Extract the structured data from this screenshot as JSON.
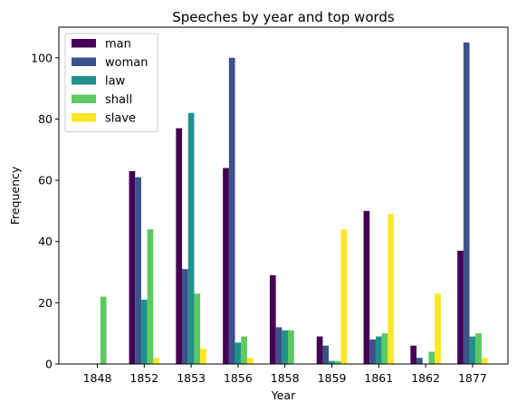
{
  "chart_data": {
    "type": "bar",
    "title": "Speeches by year and top words",
    "xlabel": "Year",
    "ylabel": "Frequency",
    "ylim": [
      0,
      110
    ],
    "yticks": [
      0,
      20,
      40,
      60,
      80,
      100
    ],
    "grid": false,
    "legend_position": "top-left",
    "categories": [
      "1848",
      "1852",
      "1853",
      "1856",
      "1858",
      "1859",
      "1861",
      "1862",
      "1877"
    ],
    "series": [
      {
        "name": "man",
        "color": "#440154",
        "values": [
          0,
          63,
          77,
          64,
          29,
          9,
          50,
          6,
          37
        ]
      },
      {
        "name": "woman",
        "color": "#3b528b",
        "values": [
          0,
          61,
          31,
          100,
          12,
          6,
          8,
          2,
          105
        ]
      },
      {
        "name": "law",
        "color": "#21918c",
        "values": [
          0,
          21,
          82,
          7,
          11,
          1,
          9,
          0,
          9
        ]
      },
      {
        "name": "shall",
        "color": "#5ec962",
        "values": [
          22,
          44,
          23,
          9,
          11,
          1,
          10,
          4,
          10
        ]
      },
      {
        "name": "slave",
        "color": "#fde725",
        "values": [
          0,
          2,
          5,
          2,
          0,
          44,
          49,
          23,
          2
        ]
      }
    ]
  }
}
